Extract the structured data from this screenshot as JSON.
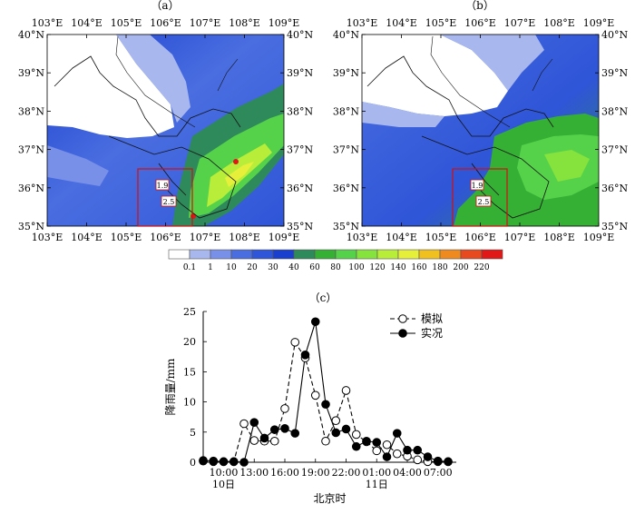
{
  "panels": {
    "a": {
      "label": "（a）"
    },
    "b": {
      "label": "（b）"
    },
    "c": {
      "label": "（c）"
    }
  },
  "map_axes": {
    "lon_ticks": [
      "103°E",
      "104°E",
      "105°E",
      "106°E",
      "107°E",
      "108°E",
      "109°E"
    ],
    "lat_ticks": [
      "40°N",
      "39°N",
      "38°N",
      "37°N",
      "36°N",
      "35°N"
    ]
  },
  "map_labels": {
    "site1": "1.9",
    "site2": "2.5"
  },
  "colorbar": {
    "ticks": [
      "0.1",
      "1",
      "10",
      "20",
      "30",
      "40",
      "60",
      "80",
      "100",
      "120",
      "140",
      "160",
      "180",
      "200",
      "220"
    ],
    "colors": [
      "#ffffff",
      "#a8b8ee",
      "#7890e8",
      "#4a6ee0",
      "#2f55d8",
      "#1a3fcf",
      "#2e8a5a",
      "#35b035",
      "#55d24a",
      "#86e23c",
      "#b8ee3a",
      "#e6f03a",
      "#f0c020",
      "#ee8a20",
      "#e84a20",
      "#e01818"
    ]
  },
  "chart_data": {
    "type": "line",
    "xlabel": "北京时",
    "ylabel": "降雨量/mm",
    "ylim": [
      0,
      25
    ],
    "yticks": [
      0,
      5,
      10,
      15,
      20,
      25
    ],
    "xtick_labels": [
      "10:00",
      "13:00",
      "16:00",
      "19:00",
      "22:00",
      "01:00",
      "04:00",
      "07:00"
    ],
    "xtick_hours": [
      10,
      13,
      16,
      19,
      22,
      25,
      28,
      31
    ],
    "date_labels": [
      {
        "text": "10日",
        "hour": 10
      },
      {
        "text": "11日",
        "hour": 25
      }
    ],
    "x_hours": [
      8,
      9,
      10,
      11,
      12,
      13,
      14,
      15,
      16,
      17,
      18,
      19,
      20,
      21,
      22,
      23,
      24,
      25,
      26,
      27,
      28,
      29,
      30,
      31,
      32
    ],
    "series": [
      {
        "name": "模拟",
        "style": "dashed-open",
        "values": [
          0.2,
          0.1,
          0.1,
          0.1,
          6.4,
          3.6,
          3.5,
          3.5,
          8.9,
          19.9,
          17.3,
          11.1,
          3.5,
          6.9,
          11.9,
          4.6,
          3.4,
          1.9,
          2.9,
          1.4,
          1.0,
          0.4,
          0.1,
          0.1,
          0.1
        ]
      },
      {
        "name": "实况",
        "style": "solid-filled",
        "values": [
          0.3,
          0.2,
          0.1,
          0.1,
          0.0,
          6.6,
          4.0,
          5.4,
          5.6,
          4.8,
          17.8,
          23.3,
          9.6,
          4.9,
          5.5,
          2.6,
          3.5,
          3.3,
          0.9,
          4.8,
          2.0,
          2.0,
          0.9,
          0.2,
          0.1
        ]
      }
    ]
  }
}
